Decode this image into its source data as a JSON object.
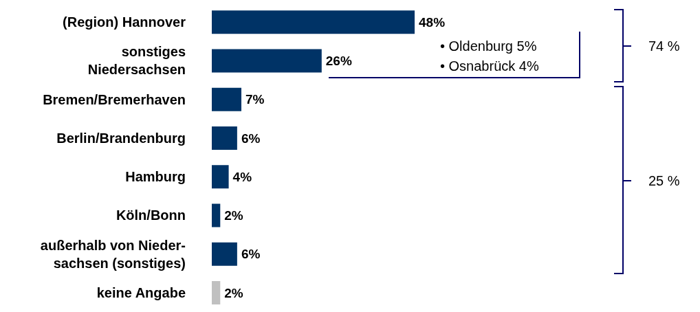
{
  "chart_data": {
    "type": "bar",
    "orientation": "horizontal",
    "categories": [
      "(Region) Hannover",
      "sonstiges Niedersachsen",
      "Bremen/Bremerhaven",
      "Berlin/Brandenburg",
      "Hamburg",
      "Köln/Bonn",
      "außerhalb von Nieder-sachsen (sonstiges)",
      "keine Angabe"
    ],
    "values": [
      48,
      26,
      7,
      6,
      4,
      2,
      6,
      2
    ],
    "value_labels": [
      "48%",
      "26%",
      "7%",
      "6%",
      "4%",
      "2%",
      "6%",
      "2%"
    ],
    "colors": [
      "#003366",
      "#003366",
      "#003366",
      "#003366",
      "#003366",
      "#003366",
      "#003366",
      "#c0c0c0"
    ],
    "annotations": [
      "• Oldenburg 5%",
      "• Osnabrück 4%",
      "74 %",
      "25 %"
    ]
  }
}
